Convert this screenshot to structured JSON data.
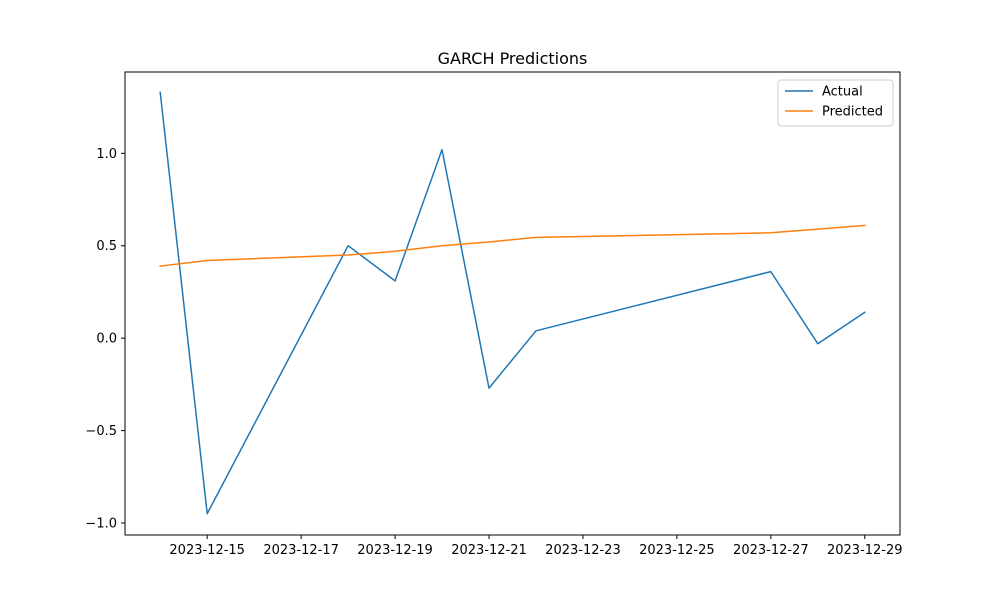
{
  "chart_data": {
    "type": "line",
    "title": "GARCH Predictions",
    "xlabel": "",
    "ylabel": "",
    "x": [
      "2023-12-14",
      "2023-12-15",
      "2023-12-18",
      "2023-12-19",
      "2023-12-20",
      "2023-12-21",
      "2023-12-22",
      "2023-12-27",
      "2023-12-28",
      "2023-12-29"
    ],
    "xlim": [
      "2023-12-13T06:00",
      "2023-12-29T18:00"
    ],
    "ylim": [
      -1.065,
      1.44
    ],
    "x_ticks": [
      "2023-12-15",
      "2023-12-17",
      "2023-12-19",
      "2023-12-21",
      "2023-12-23",
      "2023-12-25",
      "2023-12-27",
      "2023-12-29"
    ],
    "y_ticks": [
      -1.0,
      -0.5,
      0.0,
      0.5,
      1.0
    ],
    "y_tick_labels": [
      "−1.0",
      "−0.5",
      "0.0",
      "0.5",
      "1.0"
    ],
    "series": [
      {
        "name": "Actual",
        "color": "#1f77b4",
        "values": [
          1.33,
          -0.95,
          0.5,
          0.31,
          1.02,
          -0.27,
          0.04,
          0.36,
          -0.03,
          0.14
        ]
      },
      {
        "name": "Predicted",
        "color": "#ff7f0e",
        "values": [
          0.39,
          0.42,
          0.45,
          0.47,
          0.5,
          0.52,
          0.545,
          0.57,
          0.59,
          0.61
        ]
      }
    ],
    "legend": "top-right",
    "grid": false
  }
}
